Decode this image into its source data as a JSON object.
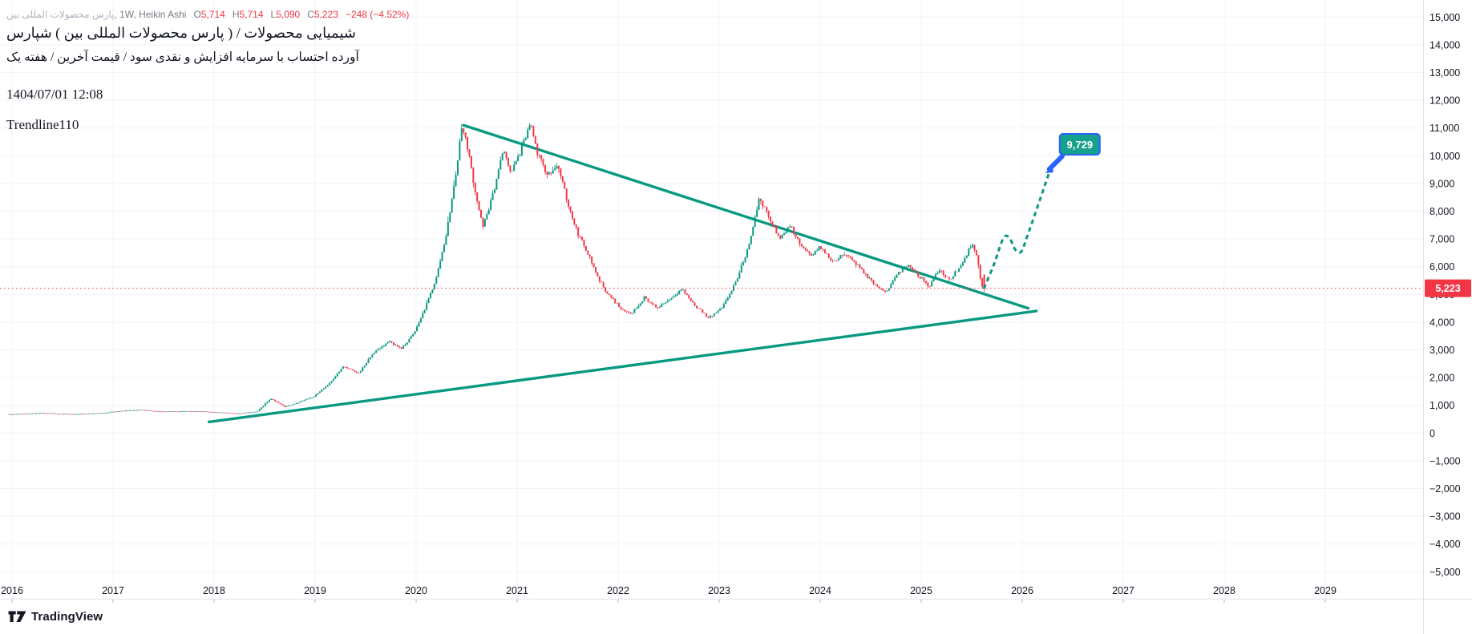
{
  "header": {
    "symbol_fa": "بین المللی محصولات پارس",
    "symbol_suffix": ", 1W, Heikin Ashi",
    "ohlc": [
      {
        "label": "O",
        "value": "5,714"
      },
      {
        "label": "H",
        "value": "5,714"
      },
      {
        "label": "L",
        "value": "5,090"
      },
      {
        "label": "C",
        "value": "5,223"
      }
    ],
    "change": "−248 (−4.52%)",
    "title_line": "شپارس ( بین المللی محصولات پارس ) / محصولات شیمیایی",
    "subtitle_line": "یک هفته / آخرین قیمت / سود نقدی و افزایش سرمایه با احتساب آورده",
    "datetime": "1404/07/01 12:08",
    "annotation": "Trendline110"
  },
  "footer": {
    "brand": "TradingView"
  },
  "price_label": {
    "value": "5,223"
  },
  "target_callout": {
    "value": "9,729"
  },
  "colors": {
    "up": "#089981",
    "down": "#f23645",
    "trend": "#089981",
    "grid": "#f0f3fa",
    "axis_text": "#131722",
    "separator": "#e0e3eb",
    "callout_fill": "#17a08b",
    "callout_border": "#2962ff",
    "last_price_line": "#f23645"
  },
  "chart_data": {
    "type": "candlestick",
    "style": "heikin-ashi",
    "interval": "1W",
    "title": "شپارس ( بین المللی محصولات پارس ) / محصولات شیمیایی",
    "x_ticks": [
      2016,
      2017,
      2018,
      2019,
      2020,
      2021,
      2022,
      2023,
      2024,
      2025,
      2026,
      2027,
      2028,
      2029
    ],
    "y_range": [
      -5000,
      15000
    ],
    "y_step": 1000,
    "grid": true,
    "last_price": 5223,
    "last_bar": {
      "open": 5714,
      "high": 5714,
      "low": 5090,
      "close": 5223
    },
    "price_path": [
      [
        2016.0,
        680
      ],
      [
        2016.3,
        720
      ],
      [
        2016.6,
        680
      ],
      [
        2016.9,
        720
      ],
      [
        2017.1,
        800
      ],
      [
        2017.3,
        840
      ],
      [
        2017.5,
        770
      ],
      [
        2017.8,
        790
      ],
      [
        2018.0,
        760
      ],
      [
        2018.25,
        700
      ],
      [
        2018.45,
        780
      ],
      [
        2018.58,
        1250
      ],
      [
        2018.72,
        950
      ],
      [
        2018.85,
        1100
      ],
      [
        2019.0,
        1300
      ],
      [
        2019.15,
        1750
      ],
      [
        2019.3,
        2400
      ],
      [
        2019.45,
        2150
      ],
      [
        2019.6,
        2900
      ],
      [
        2019.75,
        3300
      ],
      [
        2019.88,
        3050
      ],
      [
        2020.0,
        3600
      ],
      [
        2020.12,
        4600
      ],
      [
        2020.22,
        5600
      ],
      [
        2020.32,
        7200
      ],
      [
        2020.42,
        9500
      ],
      [
        2020.47,
        11100
      ],
      [
        2020.53,
        10300
      ],
      [
        2020.6,
        8800
      ],
      [
        2020.68,
        7400
      ],
      [
        2020.78,
        8600
      ],
      [
        2020.88,
        10200
      ],
      [
        2020.96,
        9400
      ],
      [
        2021.05,
        10100
      ],
      [
        2021.15,
        11150
      ],
      [
        2021.22,
        10100
      ],
      [
        2021.32,
        9300
      ],
      [
        2021.42,
        9700
      ],
      [
        2021.52,
        8300
      ],
      [
        2021.62,
        7200
      ],
      [
        2021.72,
        6500
      ],
      [
        2021.82,
        5600
      ],
      [
        2021.92,
        5000
      ],
      [
        2022.05,
        4500
      ],
      [
        2022.15,
        4300
      ],
      [
        2022.28,
        4900
      ],
      [
        2022.4,
        4500
      ],
      [
        2022.52,
        4800
      ],
      [
        2022.65,
        5200
      ],
      [
        2022.78,
        4600
      ],
      [
        2022.92,
        4150
      ],
      [
        2023.05,
        4500
      ],
      [
        2023.18,
        5400
      ],
      [
        2023.3,
        6600
      ],
      [
        2023.42,
        8500
      ],
      [
        2023.52,
        7700
      ],
      [
        2023.62,
        7000
      ],
      [
        2023.72,
        7500
      ],
      [
        2023.82,
        6800
      ],
      [
        2023.92,
        6400
      ],
      [
        2024.02,
        6700
      ],
      [
        2024.15,
        6200
      ],
      [
        2024.28,
        6500
      ],
      [
        2024.42,
        5900
      ],
      [
        2024.55,
        5400
      ],
      [
        2024.66,
        5050
      ],
      [
        2024.78,
        5700
      ],
      [
        2024.9,
        6100
      ],
      [
        2025.0,
        5650
      ],
      [
        2025.1,
        5300
      ],
      [
        2025.2,
        5900
      ],
      [
        2025.3,
        5500
      ],
      [
        2025.42,
        6100
      ],
      [
        2025.52,
        6800
      ],
      [
        2025.56,
        6600
      ],
      [
        2025.62,
        5223
      ]
    ],
    "trendlines": [
      {
        "name": "descending-resistance",
        "from": [
          2020.47,
          11100
        ],
        "to": [
          2026.06,
          4500
        ]
      },
      {
        "name": "ascending-support",
        "from": [
          2017.95,
          400
        ],
        "to": [
          2026.14,
          4400
        ]
      }
    ],
    "projection": {
      "points": [
        [
          2025.62,
          5210
        ],
        [
          2025.72,
          6080
        ],
        [
          2025.81,
          7000
        ],
        [
          2025.87,
          7060
        ],
        [
          2025.93,
          6620
        ],
        [
          2025.99,
          6540
        ],
        [
          2026.05,
          7100
        ],
        [
          2026.16,
          8250
        ],
        [
          2026.24,
          9110
        ],
        [
          2026.3,
          9720
        ]
      ],
      "target": 9729
    }
  }
}
